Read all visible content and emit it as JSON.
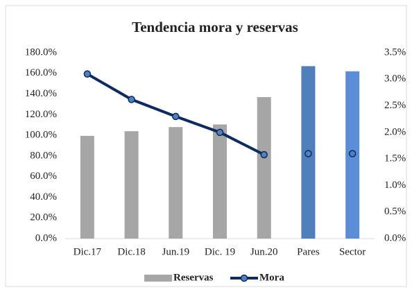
{
  "chart_data": {
    "type": "bar_line",
    "title": "Tendencia mora y reservas",
    "categories": [
      "Dic.17",
      "Dic.18",
      "Jun.19",
      "Dic. 19",
      "Jun.20",
      "Pares",
      "Sector"
    ],
    "series": [
      {
        "name": "Reservas",
        "type": "bar",
        "color": "#a6a6a6",
        "colors": [
          "#a6a6a6",
          "#a6a6a6",
          "#a6a6a6",
          "#a6a6a6",
          "#a6a6a6",
          "#4f7fbd",
          "#5b8ed6"
        ],
        "values": [
          99.5,
          104,
          108,
          110.5,
          137,
          167,
          162
        ]
      },
      {
        "name": "Mora",
        "type": "line",
        "axis": "y2",
        "color": "#0d2b5e",
        "values": [
          3.1,
          2.62,
          2.3,
          2.0,
          1.58,
          null,
          null
        ]
      },
      {
        "type": "markers",
        "axis": "y2",
        "color": "#0d2b5e",
        "values": [
          null,
          null,
          null,
          null,
          null,
          1.6,
          1.6
        ]
      }
    ],
    "ylim": [
      0,
      180
    ],
    "yticks": [
      {
        "value": 0,
        "label": "0.0%"
      },
      {
        "value": 20,
        "label": "20.0%"
      },
      {
        "value": 40,
        "label": "40.0%"
      },
      {
        "value": 60,
        "label": "60.0%"
      },
      {
        "value": 80,
        "label": "80.0%"
      },
      {
        "value": 100,
        "label": "100.0%"
      },
      {
        "value": 120,
        "label": "120.0%"
      },
      {
        "value": 140,
        "label": "140.0%"
      },
      {
        "value": 160,
        "label": "160.0%"
      },
      {
        "value": 180,
        "label": "180.0%"
      }
    ],
    "y2lim": [
      0,
      3.5
    ],
    "y2ticks": [
      {
        "value": 0,
        "label": "0.0%"
      },
      {
        "value": 0.5,
        "label": "0.5%"
      },
      {
        "value": 1,
        "label": "1.0%"
      },
      {
        "value": 1.5,
        "label": "1.5%"
      },
      {
        "value": 2,
        "label": "2.0%"
      },
      {
        "value": 2.5,
        "label": "2.5%"
      },
      {
        "value": 3,
        "label": "3.0%"
      },
      {
        "value": 3.5,
        "label": "3.5%"
      }
    ],
    "legend": "bottom"
  }
}
